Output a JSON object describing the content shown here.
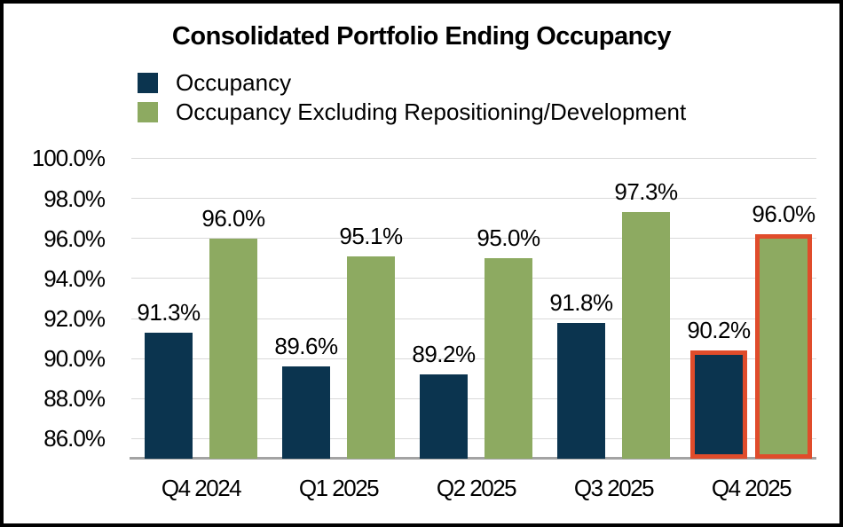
{
  "chart_data": {
    "type": "bar",
    "title": "Consolidated Portfolio Ending Occupancy",
    "categories": [
      "Q4 2024",
      "Q1 2025",
      "Q2 2025",
      "Q3 2025",
      "Q4 2025"
    ],
    "series": [
      {
        "name": "Occupancy",
        "color": "#0B344F",
        "values": [
          91.3,
          89.6,
          89.2,
          91.8,
          90.2
        ],
        "labels": [
          "91.3%",
          "89.6%",
          "89.2%",
          "91.8%",
          "90.2%"
        ]
      },
      {
        "name": "Occupancy Excluding Repositioning/Development",
        "color": "#8DAA61",
        "values": [
          96.0,
          95.1,
          95.0,
          97.3,
          96.0
        ],
        "labels": [
          "96.0%",
          "95.1%",
          "95.0%",
          "97.3%",
          "96.0%"
        ]
      }
    ],
    "y_axis": {
      "tick_labels": [
        "100.0%",
        "98.0%",
        "96.0%",
        "94.0%",
        "92.0%",
        "90.0%",
        "88.0%",
        "86.0%"
      ],
      "tick_values": [
        100,
        98,
        96,
        94,
        92,
        90,
        88,
        86
      ],
      "min": 85,
      "max": 100.6
    },
    "grid": true,
    "legend_position": "top-left",
    "highlight": {
      "category_index": 4,
      "border_color": "#E04C2B"
    },
    "colors": {
      "gridline": "#D9D9D9",
      "axis_line": "#A3A3A3",
      "text": "#000000",
      "frame": "#000000",
      "background": "#FFFFFF"
    }
  }
}
